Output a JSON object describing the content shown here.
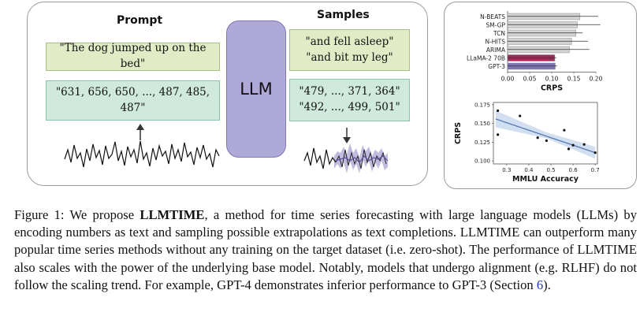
{
  "figure": {
    "prompt_header": "Prompt",
    "samples_header": "Samples",
    "prompt_text": "\"The dog jumped up on the bed\"",
    "prompt_numbers": "\"631, 656, 650, ..., 487, 485, 487\"",
    "llm_label": "LLM",
    "text_samples": [
      "\"and fell asleep\"",
      "\"and bit my leg\""
    ],
    "number_samples": [
      "\"479, ..., 371, 364\"",
      "\"492, ..., 499, 501\""
    ],
    "colors": {
      "green_box": "#e1ecc7",
      "teal_box": "#cfe9dc",
      "llm_box": "#aea9d6",
      "forecast_band": "#b9afd9"
    }
  },
  "chart_data": [
    {
      "type": "bar",
      "orientation": "horizontal",
      "categories": [
        "N-BEATS",
        "SM-GP",
        "TCN",
        "N-HITS",
        "ARIMA",
        "LLaMA-2 70B",
        "GPT-3"
      ],
      "values": [
        0.164,
        0.158,
        0.155,
        0.145,
        0.14,
        0.107,
        0.108
      ],
      "error_high": [
        0.205,
        0.21,
        0.17,
        0.182,
        0.185,
        0.11,
        0.112
      ],
      "bar_colors": [
        "#d3d3d3",
        "#d3d3d3",
        "#d3d3d3",
        "#d3d3d3",
        "#d3d3d3",
        "#9c2b5a",
        "#7c72b6"
      ],
      "xlabel": "CRPS",
      "xticks": [
        "0.00",
        "0.05",
        "0.10",
        "0.15",
        "0.20"
      ],
      "xlim": [
        0,
        0.2
      ]
    },
    {
      "type": "scatter",
      "x": [
        0.26,
        0.26,
        0.36,
        0.44,
        0.48,
        0.56,
        0.58,
        0.6,
        0.65,
        0.7
      ],
      "y": [
        0.167,
        0.135,
        0.16,
        0.131,
        0.127,
        0.141,
        0.116,
        0.121,
        0.122,
        0.111
      ],
      "trend": {
        "x": [
          0.25,
          0.7
        ],
        "y": [
          0.156,
          0.111
        ]
      },
      "xlabel": "MMLU Accuracy",
      "ylabel": "CRPS",
      "xticks": [
        "0.3",
        "0.4",
        "0.5",
        "0.6",
        "0.7"
      ],
      "yticks": [
        "0.100",
        "0.125",
        "0.150",
        "0.175"
      ],
      "xlim": [
        0.24,
        0.71
      ],
      "ylim": [
        0.096,
        0.178
      ],
      "colors": {
        "trend": "#5579b3",
        "band": "#cddcee"
      }
    }
  ],
  "caption": {
    "p0": "Figure 1: We propose ",
    "b_main": "LLMT",
    "b_sc": "IME",
    "p1": ", a method for time series forecasting with large language models (LLMs) by encoding numbers as text and sampling possible extrapolations as text completions. ",
    "n1_main": "LLMT",
    "n1_sc": "IME",
    "p2": " can outperform many popular time series methods without any training on the target dataset (i.e. zero-shot). The performance of ",
    "n2_main": "LLMT",
    "n2_sc": "IME",
    "p3": " also scales with the power of the underlying base model. Notably, models that undergo alignment (e.g. RLHF) do not follow the scaling trend. For example, GPT-4 demonstrates inferior performance to GPT-3 (Section ",
    "link": "6",
    "p4": ")."
  }
}
